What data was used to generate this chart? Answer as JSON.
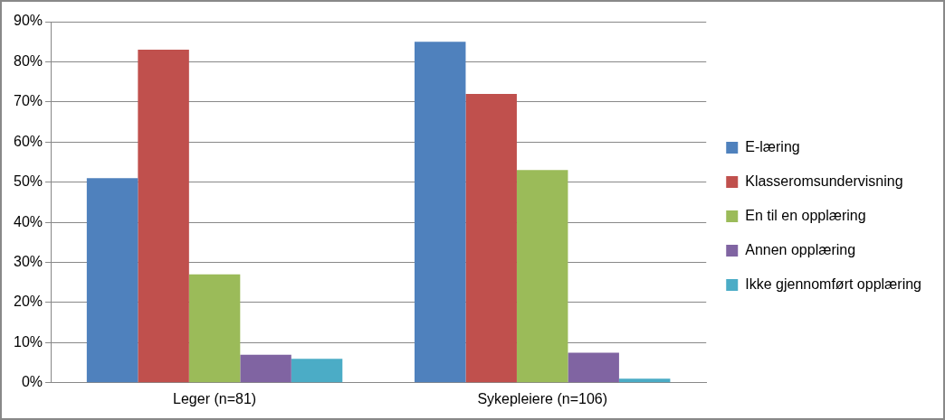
{
  "chart_data": {
    "type": "bar",
    "categories": [
      "Leger (n=81)",
      "Sykepleiere (n=106)"
    ],
    "series": [
      {
        "name": "E-læring",
        "color": "#4f81bd",
        "values": [
          51,
          85
        ]
      },
      {
        "name": "Klasseromsundervisning",
        "color": "#c0504d",
        "values": [
          83,
          72
        ]
      },
      {
        "name": "En til en opplæring",
        "color": "#9bbb59",
        "values": [
          27,
          53
        ]
      },
      {
        "name": "Annen opplæring",
        "color": "#8064a2",
        "values": [
          7,
          7.5
        ]
      },
      {
        "name": "Ikke gjennomført opplæring",
        "color": "#4bacc6",
        "values": [
          6,
          1
        ]
      }
    ],
    "ylim": [
      0,
      90
    ],
    "yticks": [
      {
        "value": 0,
        "label": "0%"
      },
      {
        "value": 10,
        "label": "10%"
      },
      {
        "value": 20,
        "label": "20%"
      },
      {
        "value": 30,
        "label": "30%"
      },
      {
        "value": 40,
        "label": "40%"
      },
      {
        "value": 50,
        "label": "50%"
      },
      {
        "value": 60,
        "label": "60%"
      },
      {
        "value": 70,
        "label": "70%"
      },
      {
        "value": 80,
        "label": "80%"
      },
      {
        "value": 90,
        "label": "90%"
      }
    ],
    "grid": "y",
    "legend": "right"
  }
}
